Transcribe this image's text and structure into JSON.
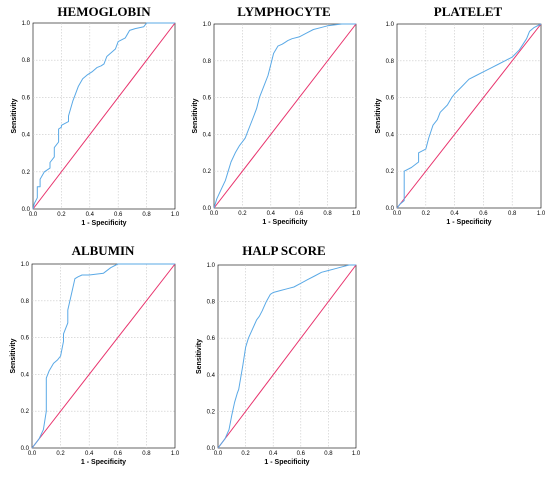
{
  "chart_data": [
    {
      "type": "line",
      "title": "HEMOGLOBIN",
      "xlabel": "1 - Specificity",
      "ylabel": "Sensitivity",
      "xlim": [
        0,
        1
      ],
      "ylim": [
        0,
        1
      ],
      "xticks": [
        "0.0",
        "0.2",
        "0.4",
        "0.6",
        "0.8",
        "1.0"
      ],
      "yticks": [
        "0.0",
        "0.2",
        "0.4",
        "0.6",
        "0.8",
        "1.0"
      ],
      "grid": true,
      "colors": {
        "curve": "#5aa9e6",
        "reference": "#e8336d"
      },
      "series": [
        {
          "x": [
            0,
            0.01,
            0.03,
            0.03,
            0.05,
            0.05,
            0.08,
            0.12,
            0.12,
            0.15,
            0.15,
            0.18,
            0.18,
            0.2,
            0.2,
            0.25,
            0.25,
            0.28,
            0.3,
            0.32,
            0.35,
            0.38,
            0.42,
            0.45,
            0.48,
            0.5,
            0.52,
            0.55,
            0.58,
            0.6,
            0.65,
            0.68,
            0.72,
            0.78,
            0.8,
            0.82,
            0.9,
            1.0
          ],
          "y": [
            0,
            0.03,
            0.06,
            0.12,
            0.12,
            0.16,
            0.2,
            0.22,
            0.25,
            0.28,
            0.33,
            0.36,
            0.43,
            0.44,
            0.45,
            0.47,
            0.5,
            0.58,
            0.62,
            0.66,
            0.7,
            0.72,
            0.74,
            0.76,
            0.77,
            0.78,
            0.82,
            0.84,
            0.86,
            0.9,
            0.92,
            0.96,
            0.97,
            0.98,
            1.0,
            1.0,
            1.0,
            1.0
          ]
        }
      ]
    },
    {
      "type": "line",
      "title": "LYMPHOCYTE",
      "xlabel": "1 - Specificity",
      "ylabel": "Sensitivity",
      "xlim": [
        0,
        1
      ],
      "ylim": [
        0,
        1
      ],
      "xticks": [
        "0.0",
        "0.2",
        "0.4",
        "0.6",
        "0.8",
        "1.0"
      ],
      "yticks": [
        "0.0",
        "0.2",
        "0.4",
        "0.6",
        "0.8",
        "1.0"
      ],
      "grid": true,
      "colors": {
        "curve": "#5aa9e6",
        "reference": "#e8336d"
      },
      "series": [
        {
          "x": [
            0,
            0.02,
            0.05,
            0.08,
            0.1,
            0.12,
            0.15,
            0.18,
            0.2,
            0.22,
            0.25,
            0.28,
            0.3,
            0.32,
            0.35,
            0.38,
            0.4,
            0.42,
            0.45,
            0.48,
            0.5,
            0.52,
            0.55,
            0.6,
            0.65,
            0.7,
            0.75,
            0.8,
            0.9,
            1.0
          ],
          "y": [
            0,
            0.05,
            0.1,
            0.15,
            0.2,
            0.25,
            0.3,
            0.34,
            0.36,
            0.38,
            0.44,
            0.5,
            0.54,
            0.6,
            0.66,
            0.72,
            0.78,
            0.84,
            0.88,
            0.89,
            0.9,
            0.91,
            0.92,
            0.93,
            0.95,
            0.97,
            0.98,
            0.99,
            1.0,
            1.0
          ]
        }
      ]
    },
    {
      "type": "line",
      "title": "PLATELET",
      "xlabel": "1 - Specificity",
      "ylabel": "Sensitivity",
      "xlim": [
        0,
        1
      ],
      "ylim": [
        0,
        1
      ],
      "xticks": [
        "0.0",
        "0.2",
        "0.4",
        "0.6",
        "0.8",
        "1.0"
      ],
      "yticks": [
        "0.0",
        "0.2",
        "0.4",
        "0.6",
        "0.8",
        "1.0"
      ],
      "grid": true,
      "colors": {
        "curve": "#5aa9e6",
        "reference": "#e8336d"
      },
      "series": [
        {
          "x": [
            0,
            0.02,
            0.05,
            0.05,
            0.1,
            0.15,
            0.15,
            0.2,
            0.22,
            0.25,
            0.28,
            0.3,
            0.35,
            0.38,
            0.4,
            0.45,
            0.5,
            0.55,
            0.6,
            0.65,
            0.7,
            0.75,
            0.8,
            0.85,
            0.9,
            0.92,
            0.95,
            1.0
          ],
          "y": [
            0,
            0.02,
            0.04,
            0.2,
            0.22,
            0.25,
            0.3,
            0.32,
            0.38,
            0.45,
            0.48,
            0.52,
            0.56,
            0.6,
            0.62,
            0.66,
            0.7,
            0.72,
            0.74,
            0.76,
            0.78,
            0.8,
            0.82,
            0.86,
            0.92,
            0.96,
            0.98,
            1.0
          ]
        }
      ]
    },
    {
      "type": "line",
      "title": "ALBUMIN",
      "xlabel": "1 - Specificity",
      "ylabel": "Sensitivity",
      "xlim": [
        0,
        1
      ],
      "ylim": [
        0,
        1
      ],
      "xticks": [
        "0.0",
        "0.2",
        "0.4",
        "0.6",
        "0.8",
        "1.0"
      ],
      "yticks": [
        "0.0",
        "0.2",
        "0.4",
        "0.6",
        "0.8",
        "1.0"
      ],
      "grid": true,
      "colors": {
        "curve": "#5aa9e6",
        "reference": "#e8336d"
      },
      "series": [
        {
          "x": [
            0,
            0.02,
            0.05,
            0.08,
            0.1,
            0.1,
            0.12,
            0.15,
            0.18,
            0.2,
            0.22,
            0.22,
            0.25,
            0.25,
            0.28,
            0.3,
            0.32,
            0.35,
            0.4,
            0.5,
            0.55,
            0.6,
            0.7,
            0.8,
            1.0
          ],
          "y": [
            0,
            0.02,
            0.05,
            0.1,
            0.2,
            0.38,
            0.42,
            0.46,
            0.48,
            0.5,
            0.58,
            0.62,
            0.68,
            0.75,
            0.85,
            0.92,
            0.93,
            0.94,
            0.94,
            0.95,
            0.98,
            1.0,
            1.0,
            1.0,
            1.0
          ]
        }
      ]
    },
    {
      "type": "line",
      "title": "HALP SCORE",
      "xlabel": "1 - Specificity",
      "ylabel": "Sensitivity",
      "xlim": [
        0,
        1
      ],
      "ylim": [
        0,
        1
      ],
      "xticks": [
        "0.0",
        "0.2",
        "0.4",
        "0.6",
        "0.8",
        "1.0"
      ],
      "yticks": [
        "0.0",
        "0.2",
        "0.4",
        "0.6",
        "0.8",
        "1.0"
      ],
      "grid": true,
      "colors": {
        "curve": "#5aa9e6",
        "reference": "#e8336d"
      },
      "series": [
        {
          "x": [
            0,
            0.02,
            0.05,
            0.08,
            0.1,
            0.12,
            0.14,
            0.15,
            0.18,
            0.2,
            0.22,
            0.25,
            0.28,
            0.3,
            0.32,
            0.35,
            0.38,
            0.4,
            0.45,
            0.5,
            0.55,
            0.6,
            0.65,
            0.7,
            0.75,
            0.8,
            0.85,
            0.9,
            0.95,
            1.0
          ],
          "y": [
            0,
            0.02,
            0.05,
            0.1,
            0.18,
            0.25,
            0.3,
            0.32,
            0.45,
            0.55,
            0.6,
            0.65,
            0.7,
            0.72,
            0.75,
            0.8,
            0.84,
            0.85,
            0.86,
            0.87,
            0.88,
            0.9,
            0.92,
            0.94,
            0.96,
            0.97,
            0.98,
            0.99,
            1.0,
            1.0
          ]
        }
      ]
    }
  ]
}
